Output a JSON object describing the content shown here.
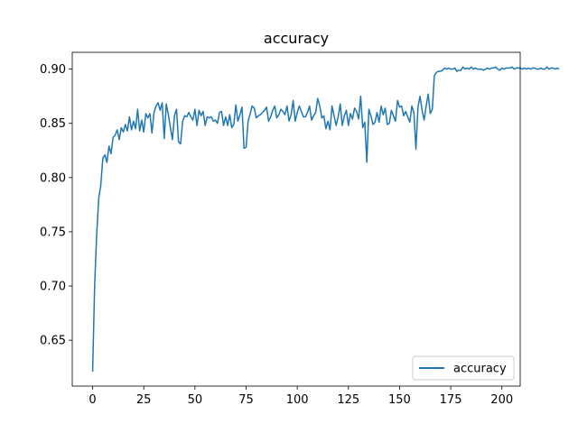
{
  "chart_data": {
    "type": "line",
    "title": "accuracy",
    "xlabel": "",
    "ylabel": "",
    "xlim": [
      -9.95,
      208.95
    ],
    "ylim": [
      0.6077,
      0.9155
    ],
    "xticks": [
      0,
      25,
      50,
      75,
      100,
      125,
      150,
      175,
      200
    ],
    "yticks": [
      0.65,
      0.7,
      0.75,
      0.8,
      0.85,
      0.9
    ],
    "xtick_labels": [
      "0",
      "25",
      "50",
      "75",
      "100",
      "125",
      "150",
      "175",
      "200"
    ],
    "ytick_labels": [
      "0.65",
      "0.70",
      "0.75",
      "0.80",
      "0.85",
      "0.90"
    ],
    "grid": false,
    "legend": {
      "position": "lower-right",
      "entries": [
        "accuracy"
      ]
    },
    "colors": {
      "series": "#1f77b4",
      "frame": "#000000",
      "legend_border": "#cccccc"
    },
    "series": [
      {
        "name": "accuracy",
        "values": [
          0.621,
          0.701,
          0.748,
          0.781,
          0.793,
          0.818,
          0.821,
          0.814,
          0.829,
          0.822,
          0.837,
          0.839,
          0.844,
          0.835,
          0.846,
          0.842,
          0.849,
          0.843,
          0.856,
          0.844,
          0.852,
          0.845,
          0.863,
          0.843,
          0.853,
          0.842,
          0.859,
          0.855,
          0.859,
          0.841,
          0.86,
          0.866,
          0.869,
          0.862,
          0.869,
          0.836,
          0.868,
          0.858,
          0.846,
          0.835,
          0.857,
          0.863,
          0.833,
          0.831,
          0.852,
          0.857,
          0.856,
          0.86,
          0.856,
          0.853,
          0.863,
          0.848,
          0.862,
          0.857,
          0.861,
          0.848,
          0.856,
          0.855,
          0.856,
          0.852,
          0.853,
          0.85,
          0.86,
          0.861,
          0.848,
          0.856,
          0.848,
          0.858,
          0.846,
          0.849,
          0.867,
          0.852,
          0.858,
          0.865,
          0.827,
          0.828,
          0.852,
          0.859,
          0.866,
          0.864,
          0.855,
          0.857,
          0.858,
          0.86,
          0.862,
          0.865,
          0.852,
          0.856,
          0.862,
          0.866,
          0.855,
          0.858,
          0.863,
          0.861,
          0.858,
          0.866,
          0.852,
          0.858,
          0.871,
          0.852,
          0.86,
          0.866,
          0.861,
          0.856,
          0.856,
          0.86,
          0.866,
          0.853,
          0.857,
          0.86,
          0.873,
          0.866,
          0.855,
          0.857,
          0.845,
          0.852,
          0.844,
          0.866,
          0.857,
          0.848,
          0.856,
          0.868,
          0.848,
          0.857,
          0.862,
          0.848,
          0.859,
          0.854,
          0.864,
          0.861,
          0.854,
          0.875,
          0.846,
          0.851,
          0.814,
          0.863,
          0.857,
          0.849,
          0.851,
          0.86,
          0.851,
          0.866,
          0.858,
          0.864,
          0.849,
          0.85,
          0.862,
          0.857,
          0.852,
          0.871,
          0.865,
          0.866,
          0.857,
          0.861,
          0.856,
          0.851,
          0.866,
          0.86,
          0.826,
          0.865,
          0.875,
          0.862,
          0.853,
          0.866,
          0.877,
          0.859,
          0.863,
          0.894,
          0.897,
          0.898,
          0.898,
          0.899,
          0.901,
          0.9,
          0.901,
          0.9,
          0.9,
          0.901,
          0.898,
          0.899,
          0.899,
          0.902,
          0.9,
          0.901,
          0.9,
          0.902,
          0.9,
          0.901,
          0.9,
          0.9,
          0.9,
          0.899,
          0.9,
          0.901,
          0.9,
          0.901,
          0.901,
          0.902,
          0.9,
          0.899,
          0.901,
          0.9,
          0.901,
          0.901,
          0.901,
          0.902,
          0.9,
          0.901,
          0.901,
          0.901,
          0.9,
          0.901,
          0.9,
          0.901,
          0.9,
          0.901,
          0.901,
          0.9,
          0.9,
          0.901,
          0.9,
          0.9,
          0.902,
          0.9,
          0.901,
          0.901,
          0.9,
          0.901,
          0.9
        ]
      }
    ]
  }
}
